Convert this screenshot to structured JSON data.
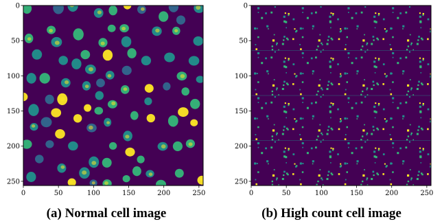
{
  "colors": {
    "background": "#440154",
    "cell_dim": "#31688e",
    "cell_mid": "#21918c",
    "cell_bright": "#35b779",
    "cell_peak": "#fde725"
  },
  "panels": [
    {
      "caption": "(a) Normal cell image",
      "x_ticks": [
        "0",
        "50",
        "100",
        "150",
        "200",
        "250"
      ],
      "y_ticks": [
        "0",
        "50",
        "100",
        "150",
        "200",
        "250"
      ],
      "x_range": [
        0,
        256
      ],
      "y_range": [
        0,
        256
      ],
      "cell_count_style": "normal"
    },
    {
      "caption": "(b) High count cell image",
      "x_ticks": [
        "0",
        "50",
        "100",
        "150",
        "200",
        "250"
      ],
      "y_ticks": [
        "0",
        "50",
        "100",
        "150",
        "200",
        "250"
      ],
      "x_range": [
        0,
        256
      ],
      "y_range": [
        0,
        256
      ],
      "cell_count_style": "high"
    }
  ]
}
